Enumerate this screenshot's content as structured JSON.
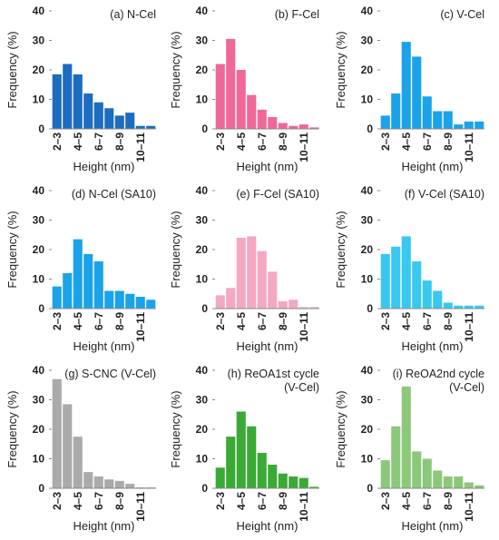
{
  "chart_data": [
    {
      "type": "bar",
      "title": [
        "(a) N-Cel"
      ],
      "color": "#1c6cc0",
      "y_label": "Frequency (%)",
      "x_label": "Height (nm)",
      "categories": [
        "2–3",
        null,
        "4–5",
        null,
        "6–7",
        null,
        "8–9",
        null,
        "10–11",
        null
      ],
      "values": [
        18.5,
        22,
        18.5,
        12,
        9,
        7,
        4.5,
        5.5,
        1,
        1
      ],
      "ylim": [
        0,
        40
      ],
      "yticks": [
        0,
        10,
        20,
        30,
        40
      ]
    },
    {
      "type": "bar",
      "title": [
        "(b) F-Cel"
      ],
      "color": "#f0679a",
      "y_label": "Frequency (%)",
      "x_label": "Height (nm)",
      "categories": [
        "2–3",
        null,
        "4–5",
        null,
        "6–7",
        null,
        "8–9",
        null,
        "10–11",
        null
      ],
      "values": [
        22,
        30.5,
        20,
        11.5,
        6.5,
        4,
        2,
        1,
        1.5,
        0.5
      ],
      "ylim": [
        0,
        40
      ],
      "yticks": [
        0,
        10,
        20,
        30,
        40
      ]
    },
    {
      "type": "bar",
      "title": [
        "(c) V-Cel"
      ],
      "color": "#1aa3e8",
      "y_label": "Frequency (%)",
      "x_label": "Height (nm)",
      "categories": [
        "2–3",
        null,
        "4–5",
        null,
        "6–7",
        null,
        "8–9",
        null,
        "10–11",
        null
      ],
      "values": [
        4.5,
        12,
        29.5,
        24.5,
        11,
        6,
        6,
        1.5,
        2.5,
        2.5
      ],
      "ylim": [
        0,
        40
      ],
      "yticks": [
        0,
        10,
        20,
        30,
        40
      ]
    },
    {
      "type": "bar",
      "title": [
        "(d) N-Cel (SA10)"
      ],
      "color": "#1aa3e8",
      "y_label": "Frequency (%)",
      "x_label": "Height (nm)",
      "categories": [
        "2–3",
        null,
        "4–5",
        null,
        "6–7",
        null,
        "8–9",
        null,
        "10–11",
        null
      ],
      "values": [
        7.5,
        12,
        23.5,
        18.5,
        16,
        6,
        6,
        5,
        4,
        3
      ],
      "ylim": [
        0,
        40
      ],
      "yticks": [
        0,
        10,
        20,
        30,
        40
      ]
    },
    {
      "type": "bar",
      "title": [
        "(e) F-Cel (SA10)"
      ],
      "color": "#f4a8c4",
      "y_label": "Frequency (%)",
      "x_label": "Height (nm)",
      "categories": [
        "2–3",
        null,
        "4–5",
        null,
        "6–7",
        null,
        "8–9",
        null,
        "10–11",
        null
      ],
      "values": [
        4.5,
        7,
        24,
        24.5,
        19.5,
        12.5,
        2.5,
        3,
        0.5,
        0.5
      ],
      "ylim": [
        0,
        40
      ],
      "yticks": [
        0,
        10,
        20,
        30,
        40
      ]
    },
    {
      "type": "bar",
      "title": [
        "(f) V-Cel (SA10)"
      ],
      "color": "#38c8f0",
      "y_label": "Frequency (%)",
      "x_label": "Height (nm)",
      "categories": [
        "2–3",
        null,
        "4–5",
        null,
        "6–7",
        null,
        "8–9",
        null,
        "10–11",
        null
      ],
      "values": [
        18.5,
        21,
        24.5,
        16,
        9.5,
        6,
        2,
        1,
        1,
        1
      ],
      "ylim": [
        0,
        40
      ],
      "yticks": [
        0,
        10,
        20,
        30,
        40
      ]
    },
    {
      "type": "bar",
      "title": [
        "(g) S-CNC (V-Cel)"
      ],
      "color": "#aaaaaa",
      "y_label": "Frequency (%)",
      "x_label": "Height (nm)",
      "categories": [
        "2–3",
        null,
        "4–5",
        null,
        "6–7",
        null,
        "8–9",
        null,
        "10–11",
        null
      ],
      "values": [
        37,
        28.5,
        17.5,
        5.5,
        4,
        3,
        2.5,
        1.5,
        0.3,
        0.3
      ],
      "ylim": [
        0,
        40
      ],
      "yticks": [
        0,
        10,
        20,
        30,
        40
      ]
    },
    {
      "type": "bar",
      "title": [
        "(h) ReOA1st cycle",
        "(V-Cel)"
      ],
      "color": "#3aaa35",
      "y_label": "Frequency (%)",
      "x_label": "Height (nm)",
      "categories": [
        "2–3",
        null,
        "4–5",
        null,
        "6–7",
        null,
        "8–9",
        null,
        "10–11",
        null
      ],
      "values": [
        7,
        17.5,
        26,
        21,
        12,
        8,
        5,
        4,
        3.5,
        0.5
      ],
      "ylim": [
        0,
        40
      ],
      "yticks": [
        0,
        10,
        20,
        30,
        40
      ]
    },
    {
      "type": "bar",
      "title": [
        "(i) ReOA2nd cycle",
        "(V-Cel)"
      ],
      "color": "#8cc87a",
      "y_label": "Frequency (%)",
      "x_label": "Height (nm)",
      "categories": [
        "2–3",
        null,
        "4–5",
        null,
        "6–7",
        null,
        "8–9",
        null,
        "10–11",
        null
      ],
      "values": [
        9.5,
        21,
        34.5,
        12.5,
        10,
        6,
        4,
        4,
        2,
        1
      ],
      "ylim": [
        0,
        40
      ],
      "yticks": [
        0,
        10,
        20,
        30,
        40
      ]
    }
  ]
}
